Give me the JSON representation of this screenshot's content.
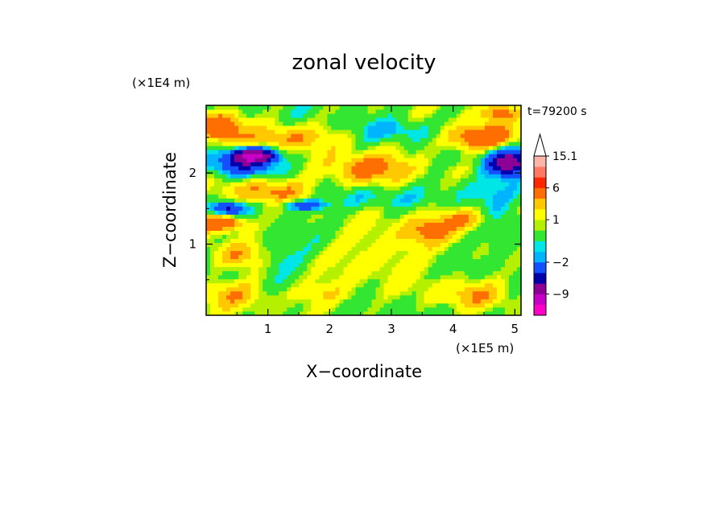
{
  "chart_data": {
    "type": "heatmap",
    "title": "zonal velocity",
    "xlabel": "X−coordinate",
    "ylabel": "Z−coordinate",
    "x_scale_label": "(×1E5 m)",
    "y_scale_label": "(×1E4 m)",
    "time_label": "t=79200 s",
    "xlim": [
      0,
      5.1
    ],
    "ylim": [
      0,
      2.95
    ],
    "x_ticks": [
      1,
      2,
      3,
      4,
      5
    ],
    "y_ticks": [
      1,
      2
    ],
    "colorbar": {
      "boundaries": [
        -15,
        -12,
        -9,
        -6,
        -4,
        -2,
        -1,
        -0.5,
        0.5,
        1,
        2,
        3,
        6,
        9,
        12,
        15.1
      ],
      "colors": [
        "#ff00c8",
        "#c800c8",
        "#8c0096",
        "#0000aa",
        "#1450ff",
        "#00b4ff",
        "#00e6e6",
        "#32e632",
        "#b4f000",
        "#ffff00",
        "#ffc800",
        "#ff6e00",
        "#ff2800",
        "#ff7864",
        "#ffb4aa"
      ],
      "tick_labels": [
        {
          "value": 15.1,
          "label": "15.1"
        },
        {
          "value": 6,
          "label": "6"
        },
        {
          "value": 1,
          "label": "1"
        },
        {
          "value": -2,
          "label": "−2"
        },
        {
          "value": -9,
          "label": "−9"
        }
      ],
      "extend_top": true
    },
    "features": [
      {
        "x": 0.2,
        "z": 2.65,
        "sx": 0.35,
        "sz": 0.2,
        "amp": 4.5
      },
      {
        "x": 0.75,
        "z": 2.25,
        "sx": 0.35,
        "sz": 0.1,
        "amp": -10
      },
      {
        "x": 0.55,
        "z": 2.1,
        "sx": 0.5,
        "sz": 0.15,
        "amp": -4
      },
      {
        "x": 1.0,
        "z": 1.75,
        "sx": 0.6,
        "sz": 0.16,
        "amp": 3
      },
      {
        "x": 0.25,
        "z": 1.3,
        "sx": 0.4,
        "sz": 0.12,
        "amp": 5
      },
      {
        "x": 0.35,
        "z": 1.5,
        "sx": 0.25,
        "sz": 0.1,
        "amp": -5
      },
      {
        "x": 1.3,
        "z": 2.5,
        "sx": 0.8,
        "sz": 0.18,
        "amp": 2.5
      },
      {
        "x": 2.6,
        "z": 2.05,
        "sx": 0.7,
        "sz": 0.22,
        "amp": 3.5
      },
      {
        "x": 2.6,
        "z": 1.65,
        "sx": 0.7,
        "sz": 0.16,
        "amp": -1.2
      },
      {
        "x": 3.1,
        "z": 2.6,
        "sx": 0.6,
        "sz": 0.15,
        "amp": -1.5
      },
      {
        "x": 1.6,
        "z": 1.55,
        "sx": 0.35,
        "sz": 0.07,
        "amp": -4
      },
      {
        "x": 4.45,
        "z": 2.5,
        "sx": 0.6,
        "sz": 0.18,
        "amp": 4.5
      },
      {
        "x": 4.9,
        "z": 2.15,
        "sx": 0.35,
        "sz": 0.18,
        "amp": -8
      },
      {
        "x": 4.6,
        "z": 1.75,
        "sx": 0.6,
        "sz": 0.2,
        "amp": -1.5
      },
      {
        "x": 4.2,
        "z": 1.35,
        "sx": 0.4,
        "sz": 0.15,
        "amp": 3
      },
      {
        "x": 4.7,
        "z": 1.2,
        "sx": 0.35,
        "sz": 0.25,
        "amp": -1.2
      },
      {
        "x": 4.75,
        "z": 2.85,
        "sx": 0.35,
        "sz": 0.12,
        "amp": 3
      },
      {
        "x": 2.9,
        "z": 0.9,
        "sx": 0.8,
        "sz": 0.4,
        "amp": 1.5
      },
      {
        "x": 1.2,
        "z": 0.8,
        "sx": 0.4,
        "sz": 0.2,
        "amp": -1.2
      },
      {
        "x": 0.4,
        "z": 0.3,
        "sx": 0.6,
        "sz": 0.2,
        "amp": 2.2
      },
      {
        "x": 4.3,
        "z": 0.3,
        "sx": 0.6,
        "sz": 0.2,
        "amp": 2.2
      },
      {
        "x": 3.6,
        "z": 1.2,
        "sx": 0.4,
        "sz": 0.2,
        "amp": 2.5
      },
      {
        "x": 1.9,
        "z": 0.3,
        "sx": 0.5,
        "sz": 0.18,
        "amp": 1.8
      },
      {
        "x": 0.5,
        "z": 0.85,
        "sx": 0.4,
        "sz": 0.2,
        "amp": 2.5
      }
    ]
  }
}
